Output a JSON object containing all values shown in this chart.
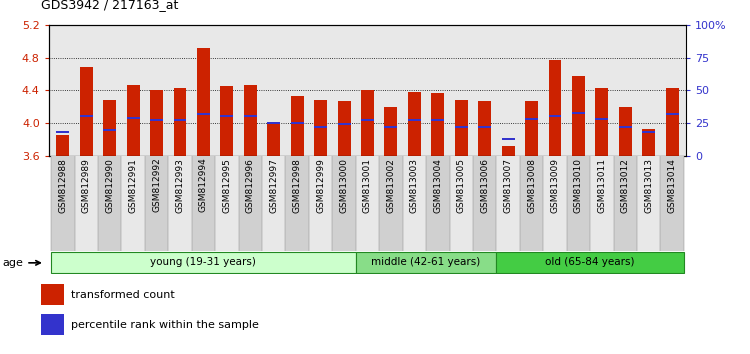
{
  "title": "GDS3942 / 217163_at",
  "samples": [
    "GSM812988",
    "GSM812989",
    "GSM812990",
    "GSM812991",
    "GSM812992",
    "GSM812993",
    "GSM812994",
    "GSM812995",
    "GSM812996",
    "GSM812997",
    "GSM812998",
    "GSM812999",
    "GSM813000",
    "GSM813001",
    "GSM813002",
    "GSM813003",
    "GSM813004",
    "GSM813005",
    "GSM813006",
    "GSM813007",
    "GSM813008",
    "GSM813009",
    "GSM813010",
    "GSM813011",
    "GSM813012",
    "GSM813013",
    "GSM813014"
  ],
  "transformed_count": [
    3.85,
    4.68,
    4.28,
    4.47,
    4.4,
    4.43,
    4.92,
    4.45,
    4.46,
    4.0,
    4.33,
    4.28,
    4.27,
    4.4,
    4.2,
    4.38,
    4.37,
    4.28,
    4.27,
    3.72,
    4.27,
    4.77,
    4.57,
    4.43,
    4.2,
    3.93,
    4.43
  ],
  "percentile_rank": [
    18,
    30,
    20,
    29,
    27,
    27,
    32,
    30,
    30,
    25,
    25,
    22,
    24,
    27,
    22,
    27,
    27,
    22,
    22,
    13,
    28,
    30,
    33,
    28,
    22,
    18,
    32
  ],
  "ymin": 3.6,
  "ymax": 5.2,
  "y_ticks": [
    3.6,
    4.0,
    4.4,
    4.8,
    5.2
  ],
  "y_ticks_labels": [
    "3.6",
    "4.0",
    "4.4",
    "4.8",
    "5.2"
  ],
  "right_yticks": [
    0,
    25,
    50,
    75,
    100
  ],
  "right_yticks_labels": [
    "0",
    "25",
    "50",
    "75",
    "100%"
  ],
  "bar_color": "#cc2200",
  "percentile_color": "#3333cc",
  "groups": [
    {
      "label": "young (19-31 years)",
      "start": 0,
      "end": 13,
      "color": "#ccffcc"
    },
    {
      "label": "middle (42-61 years)",
      "start": 13,
      "end": 19,
      "color": "#88dd88"
    },
    {
      "label": "old (65-84 years)",
      "start": 19,
      "end": 27,
      "color": "#44cc44"
    }
  ],
  "legend_items": [
    {
      "label": "transformed count",
      "color": "#cc2200"
    },
    {
      "label": "percentile rank within the sample",
      "color": "#3333cc"
    }
  ],
  "bar_width": 0.55,
  "plot_bg": "#e8e8e8"
}
